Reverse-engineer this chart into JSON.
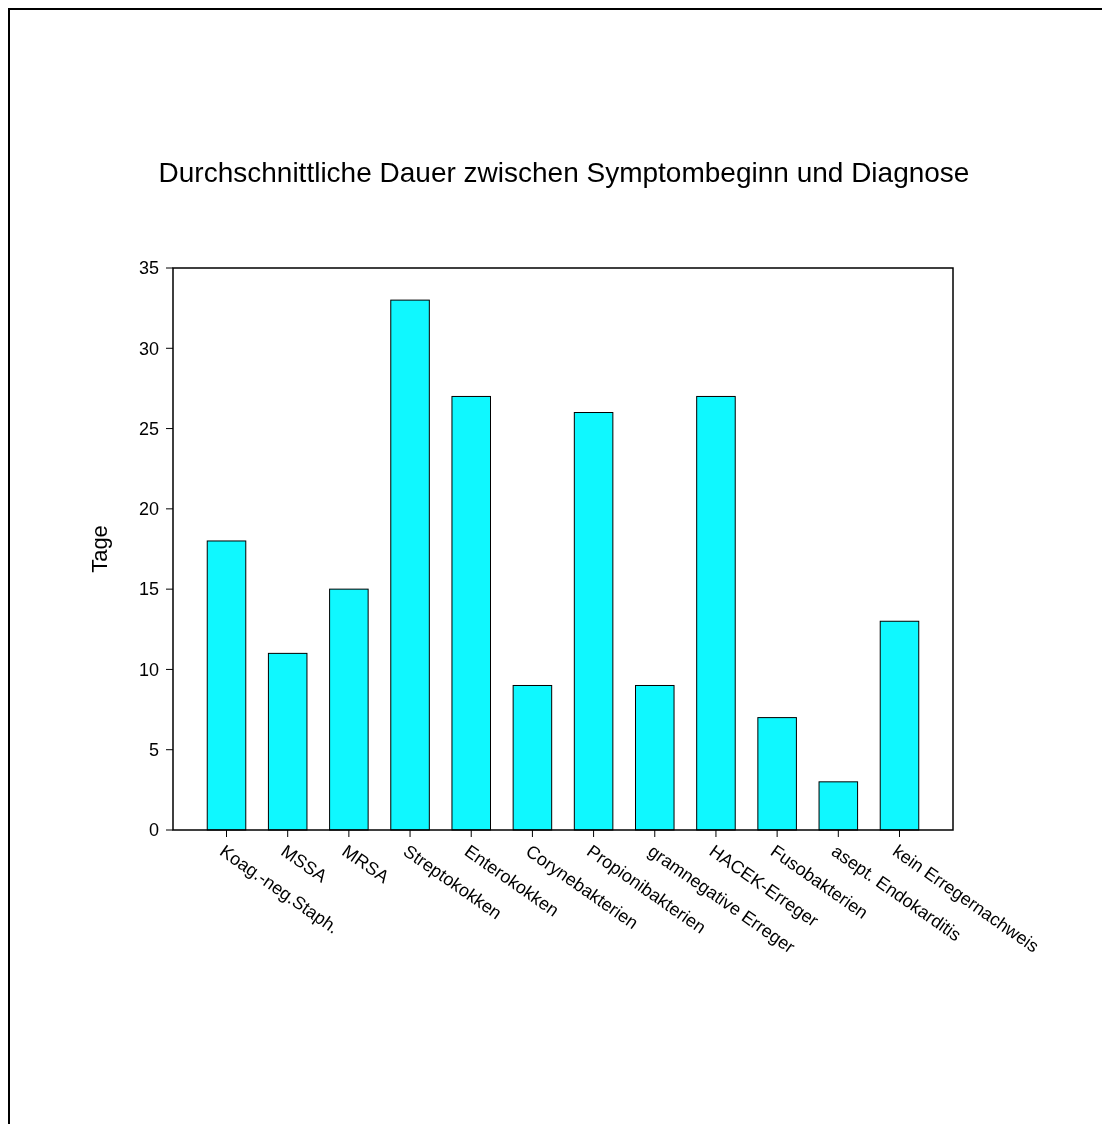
{
  "chart_data": {
    "type": "bar",
    "title": "Durchschnittliche Dauer zwischen Symptombeginn und Diagnose",
    "ylabel": "Tage",
    "categories": [
      "Koag.-neg.Staph.",
      "MSSA",
      "MRSA",
      "Streptokokken",
      "Enterokokken",
      "Corynebakterien",
      "Propionibakterien",
      "gramnegative Erreger",
      "HACEK-Erreger",
      "Fusobakterien",
      "asept. Endokarditis",
      "kein Erregernachweis"
    ],
    "values": [
      18,
      11,
      15,
      33,
      27,
      9,
      26,
      9,
      27,
      7,
      3,
      13
    ],
    "color": "#0ff8ff",
    "ylim": [
      0,
      35
    ],
    "yticks": [
      0,
      5,
      10,
      15,
      20,
      25,
      30,
      35
    ],
    "grid": false
  }
}
